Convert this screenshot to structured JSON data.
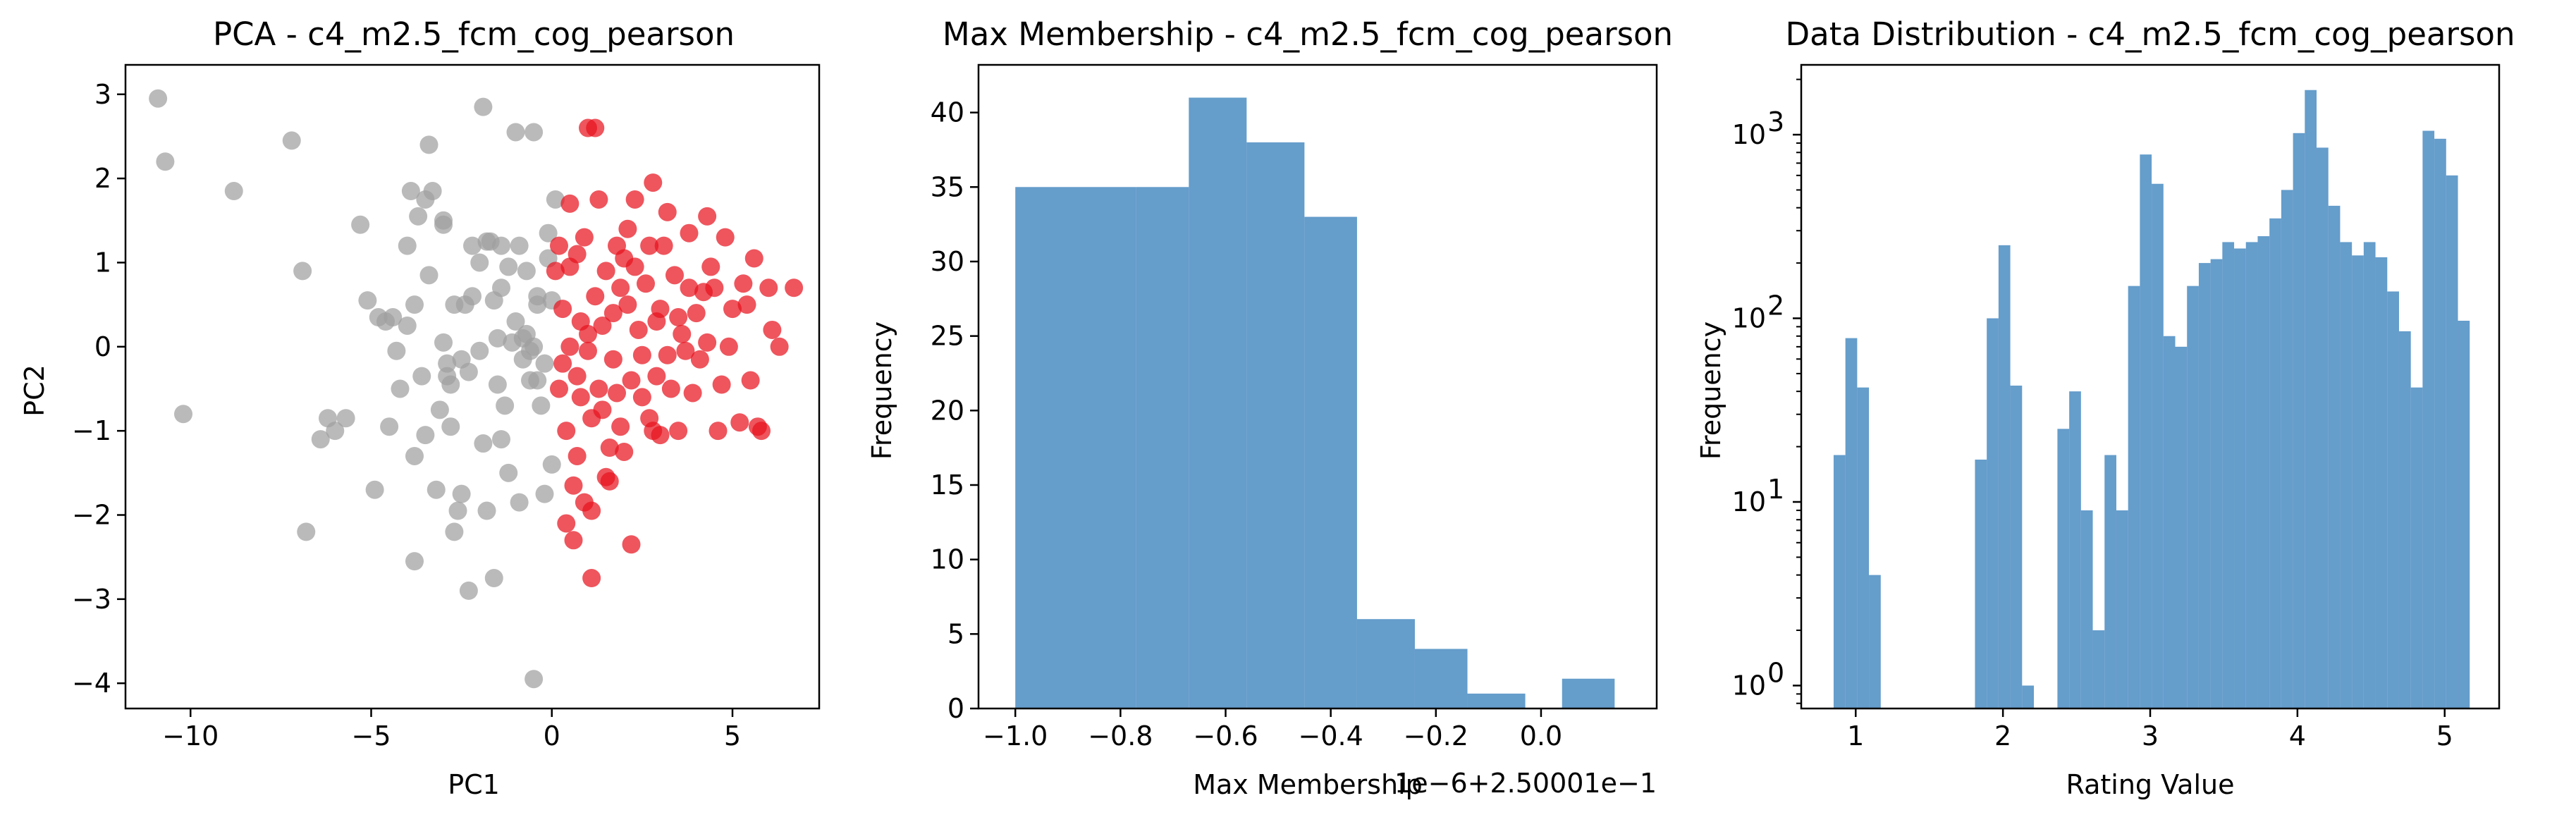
{
  "colors": {
    "gray": "#a0a0a0",
    "red": "#e8141e",
    "blue": "#4a8cc2"
  },
  "chart_data": [
    {
      "type": "scatter",
      "title": "PCA - c4_m2.5_fcm_cog_pearson",
      "xlabel": "PC1",
      "ylabel": "PC2",
      "xlim": [
        -11.8,
        7.4
      ],
      "ylim": [
        -4.3,
        3.35
      ],
      "xticks": [
        {
          "v": -10,
          "t": "−10"
        },
        {
          "v": -5,
          "t": "−5"
        },
        {
          "v": 0,
          "t": "0"
        },
        {
          "v": 5,
          "t": "5"
        }
      ],
      "yticks": [
        {
          "v": -4,
          "t": "−4"
        },
        {
          "v": -3,
          "t": "−3"
        },
        {
          "v": -2,
          "t": "−2"
        },
        {
          "v": -1,
          "t": "−1"
        },
        {
          "v": 0,
          "t": "0"
        },
        {
          "v": 1,
          "t": "1"
        },
        {
          "v": 2,
          "t": "2"
        },
        {
          "v": 3,
          "t": "3"
        }
      ],
      "series": [
        {
          "color": "#a0a0a0",
          "points": [
            [
              -10.9,
              2.95
            ],
            [
              -10.7,
              2.2
            ],
            [
              -10.2,
              -0.8
            ],
            [
              -8.8,
              1.85
            ],
            [
              -7.2,
              2.45
            ],
            [
              -6.9,
              0.9
            ],
            [
              -6.8,
              -2.2
            ],
            [
              -6.4,
              -1.1
            ],
            [
              -6.2,
              -0.85
            ],
            [
              -6.0,
              -1.0
            ],
            [
              -5.7,
              -0.85
            ],
            [
              -5.3,
              1.45
            ],
            [
              -5.1,
              0.55
            ],
            [
              -4.9,
              -1.7
            ],
            [
              -4.8,
              0.35
            ],
            [
              -4.6,
              0.3
            ],
            [
              -4.5,
              -0.95
            ],
            [
              -4.4,
              0.35
            ],
            [
              -4.3,
              -0.05
            ],
            [
              -4.2,
              -0.5
            ],
            [
              -4.0,
              0.25
            ],
            [
              -4.0,
              1.2
            ],
            [
              -3.9,
              1.85
            ],
            [
              -3.8,
              0.5
            ],
            [
              -3.8,
              -1.3
            ],
            [
              -3.8,
              -2.55
            ],
            [
              -3.7,
              1.55
            ],
            [
              -3.6,
              -0.35
            ],
            [
              -3.5,
              -1.05
            ],
            [
              -3.5,
              1.75
            ],
            [
              -3.4,
              0.85
            ],
            [
              -3.4,
              2.4
            ],
            [
              -3.3,
              1.85
            ],
            [
              -3.2,
              -1.7
            ],
            [
              -3.1,
              -0.75
            ],
            [
              -3.0,
              1.45
            ],
            [
              -3.0,
              1.5
            ],
            [
              -3.0,
              0.05
            ],
            [
              -2.9,
              -0.2
            ],
            [
              -2.9,
              -0.35
            ],
            [
              -2.8,
              -0.45
            ],
            [
              -2.8,
              -0.95
            ],
            [
              -2.7,
              0.5
            ],
            [
              -2.7,
              -2.2
            ],
            [
              -2.6,
              -1.95
            ],
            [
              -2.5,
              -0.15
            ],
            [
              -2.5,
              -1.75
            ],
            [
              -2.4,
              0.5
            ],
            [
              -2.3,
              -0.3
            ],
            [
              -2.3,
              -2.9
            ],
            [
              -2.2,
              0.6
            ],
            [
              -2.2,
              1.2
            ],
            [
              -2.0,
              -0.05
            ],
            [
              -2.0,
              1.0
            ],
            [
              -1.9,
              -1.15
            ],
            [
              -1.9,
              2.85
            ],
            [
              -1.8,
              1.25
            ],
            [
              -1.8,
              -1.95
            ],
            [
              -1.7,
              1.25
            ],
            [
              -1.6,
              0.55
            ],
            [
              -1.6,
              -2.75
            ],
            [
              -1.5,
              0.1
            ],
            [
              -1.5,
              -0.45
            ],
            [
              -1.4,
              0.7
            ],
            [
              -1.4,
              1.2
            ],
            [
              -1.4,
              -1.1
            ],
            [
              -1.3,
              -0.7
            ],
            [
              -1.2,
              0.95
            ],
            [
              -1.2,
              -1.5
            ],
            [
              -1.1,
              0.05
            ],
            [
              -1.0,
              0.3
            ],
            [
              -1.0,
              2.55
            ],
            [
              -0.9,
              1.2
            ],
            [
              -0.9,
              -1.85
            ],
            [
              -0.8,
              -0.15
            ],
            [
              -0.8,
              0.1
            ],
            [
              -0.7,
              0.15
            ],
            [
              -0.7,
              0.9
            ],
            [
              -0.6,
              -0.05
            ],
            [
              -0.6,
              -0.4
            ],
            [
              -0.5,
              0.0
            ],
            [
              -0.5,
              2.55
            ],
            [
              -0.5,
              -3.95
            ],
            [
              -0.4,
              0.5
            ],
            [
              -0.4,
              0.6
            ],
            [
              -0.4,
              -0.4
            ],
            [
              -0.3,
              -0.7
            ],
            [
              -0.2,
              -0.2
            ],
            [
              -0.2,
              -1.75
            ],
            [
              -0.1,
              1.35
            ],
            [
              -0.1,
              1.05
            ],
            [
              0.0,
              0.55
            ],
            [
              0.0,
              -1.4
            ],
            [
              0.1,
              1.75
            ]
          ]
        },
        {
          "color": "#e8141e",
          "points": [
            [
              0.1,
              0.9
            ],
            [
              0.2,
              -0.5
            ],
            [
              0.2,
              1.2
            ],
            [
              0.3,
              -0.2
            ],
            [
              0.3,
              0.45
            ],
            [
              0.4,
              -1.0
            ],
            [
              0.4,
              -2.1
            ],
            [
              0.5,
              0.0
            ],
            [
              0.5,
              0.95
            ],
            [
              0.5,
              1.7
            ],
            [
              0.6,
              -1.65
            ],
            [
              0.6,
              -2.3
            ],
            [
              0.7,
              -0.35
            ],
            [
              0.7,
              1.1
            ],
            [
              0.7,
              -1.3
            ],
            [
              0.8,
              0.3
            ],
            [
              0.8,
              -0.6
            ],
            [
              0.9,
              1.3
            ],
            [
              0.9,
              -1.85
            ],
            [
              1.0,
              0.15
            ],
            [
              1.0,
              2.6
            ],
            [
              1.0,
              -0.05
            ],
            [
              1.1,
              -0.85
            ],
            [
              1.1,
              -1.95
            ],
            [
              1.1,
              -2.75
            ],
            [
              1.2,
              2.6
            ],
            [
              1.2,
              0.6
            ],
            [
              1.3,
              -0.5
            ],
            [
              1.3,
              1.75
            ],
            [
              1.4,
              -0.75
            ],
            [
              1.4,
              0.25
            ],
            [
              1.5,
              -1.55
            ],
            [
              1.5,
              0.9
            ],
            [
              1.6,
              -1.2
            ],
            [
              1.6,
              -1.6
            ],
            [
              1.7,
              0.4
            ],
            [
              1.7,
              -0.15
            ],
            [
              1.8,
              1.2
            ],
            [
              1.8,
              -0.55
            ],
            [
              1.9,
              -0.95
            ],
            [
              1.9,
              0.7
            ],
            [
              2.0,
              1.05
            ],
            [
              2.0,
              -1.25
            ],
            [
              2.1,
              1.4
            ],
            [
              2.1,
              0.5
            ],
            [
              2.2,
              -0.4
            ],
            [
              2.2,
              -2.35
            ],
            [
              2.3,
              0.95
            ],
            [
              2.3,
              1.75
            ],
            [
              2.4,
              0.2
            ],
            [
              2.5,
              -0.1
            ],
            [
              2.5,
              -0.6
            ],
            [
              2.6,
              0.75
            ],
            [
              2.7,
              -0.85
            ],
            [
              2.7,
              1.2
            ],
            [
              2.8,
              1.95
            ],
            [
              2.8,
              -1.0
            ],
            [
              2.9,
              0.3
            ],
            [
              2.9,
              -0.35
            ],
            [
              3.0,
              0.45
            ],
            [
              3.0,
              -1.05
            ],
            [
              3.1,
              1.2
            ],
            [
              3.2,
              1.6
            ],
            [
              3.2,
              -0.1
            ],
            [
              3.3,
              -0.5
            ],
            [
              3.4,
              0.85
            ],
            [
              3.5,
              -1.0
            ],
            [
              3.5,
              0.35
            ],
            [
              3.6,
              0.15
            ],
            [
              3.7,
              -0.05
            ],
            [
              3.8,
              0.7
            ],
            [
              3.8,
              1.35
            ],
            [
              3.9,
              -0.55
            ],
            [
              4.0,
              0.4
            ],
            [
              4.1,
              -0.15
            ],
            [
              4.2,
              0.65
            ],
            [
              4.3,
              1.55
            ],
            [
              4.3,
              0.05
            ],
            [
              4.4,
              0.95
            ],
            [
              4.5,
              0.7
            ],
            [
              4.6,
              -1.0
            ],
            [
              4.7,
              -0.45
            ],
            [
              4.8,
              1.3
            ],
            [
              4.9,
              0.0
            ],
            [
              5.0,
              0.45
            ],
            [
              5.2,
              -0.9
            ],
            [
              5.3,
              0.75
            ],
            [
              5.4,
              0.5
            ],
            [
              5.5,
              -0.4
            ],
            [
              5.6,
              1.05
            ],
            [
              5.7,
              -0.95
            ],
            [
              5.8,
              -1.0
            ],
            [
              6.0,
              0.7
            ],
            [
              6.1,
              0.2
            ],
            [
              6.3,
              0.0
            ],
            [
              6.7,
              0.7
            ]
          ]
        }
      ]
    },
    {
      "type": "bar",
      "title": "Max Membership - c4_m2.5_fcm_cog_pearson",
      "xlabel": "Max Membership",
      "ylabel": "Frequency",
      "offset_text": "1e−6+2.50001e−1",
      "xlim": [
        -1.07,
        0.22
      ],
      "ylim": [
        0,
        43.2
      ],
      "xticks": [
        {
          "v": -1.0,
          "t": "−1.0"
        },
        {
          "v": -0.8,
          "t": "−0.8"
        },
        {
          "v": -0.6,
          "t": "−0.6"
        },
        {
          "v": -0.4,
          "t": "−0.4"
        },
        {
          "v": -0.2,
          "t": "−0.2"
        },
        {
          "v": 0.0,
          "t": "0.0"
        }
      ],
      "yticks": [
        {
          "v": 0,
          "t": "0"
        },
        {
          "v": 5,
          "t": "5"
        },
        {
          "v": 10,
          "t": "10"
        },
        {
          "v": 15,
          "t": "15"
        },
        {
          "v": 20,
          "t": "20"
        },
        {
          "v": 25,
          "t": "25"
        },
        {
          "v": 30,
          "t": "30"
        },
        {
          "v": 35,
          "t": "35"
        },
        {
          "v": 40,
          "t": "40"
        }
      ],
      "bars": [
        [
          -1.0,
          -0.77,
          35
        ],
        [
          -0.77,
          -0.67,
          35
        ],
        [
          -0.67,
          -0.56,
          41
        ],
        [
          -0.56,
          -0.45,
          38
        ],
        [
          -0.45,
          -0.35,
          33
        ],
        [
          -0.35,
          -0.24,
          6
        ],
        [
          -0.24,
          -0.14,
          4
        ],
        [
          -0.14,
          -0.03,
          1
        ],
        [
          0.04,
          0.14,
          2
        ]
      ]
    },
    {
      "type": "bar",
      "title": "Data Distribution - c4_m2.5_fcm_cog_pearson",
      "xlabel": "Rating Value",
      "ylabel": "Frequency",
      "yscale": "log",
      "xlim": [
        0.63,
        5.37
      ],
      "ylim": [
        0.75,
        2400
      ],
      "xticks": [
        {
          "v": 1,
          "t": "1"
        },
        {
          "v": 2,
          "t": "2"
        },
        {
          "v": 3,
          "t": "3"
        },
        {
          "v": 4,
          "t": "4"
        },
        {
          "v": 5,
          "t": "5"
        }
      ],
      "yticks": [
        {
          "v": 1,
          "b": "10",
          "e": "0"
        },
        {
          "v": 10,
          "b": "10",
          "e": "1"
        },
        {
          "v": 100,
          "b": "10",
          "e": "2"
        },
        {
          "v": 1000,
          "b": "10",
          "e": "3"
        }
      ],
      "bars": [
        [
          0.85,
          0.93,
          18
        ],
        [
          0.93,
          1.01,
          78
        ],
        [
          1.01,
          1.09,
          42
        ],
        [
          1.09,
          1.17,
          4
        ],
        [
          1.81,
          1.89,
          17
        ],
        [
          1.89,
          1.97,
          100
        ],
        [
          1.97,
          2.05,
          250
        ],
        [
          2.05,
          2.13,
          43
        ],
        [
          2.13,
          2.21,
          1
        ],
        [
          2.37,
          2.45,
          25
        ],
        [
          2.45,
          2.53,
          40
        ],
        [
          2.53,
          2.61,
          9
        ],
        [
          2.61,
          2.69,
          2
        ],
        [
          2.69,
          2.77,
          18
        ],
        [
          2.77,
          2.85,
          9
        ],
        [
          2.85,
          2.93,
          150
        ],
        [
          2.93,
          3.01,
          780
        ],
        [
          3.01,
          3.09,
          540
        ],
        [
          3.09,
          3.17,
          80
        ],
        [
          3.17,
          3.25,
          70
        ],
        [
          3.25,
          3.33,
          150
        ],
        [
          3.33,
          3.41,
          200
        ],
        [
          3.41,
          3.49,
          210
        ],
        [
          3.49,
          3.57,
          260
        ],
        [
          3.57,
          3.65,
          240
        ],
        [
          3.65,
          3.73,
          260
        ],
        [
          3.73,
          3.81,
          280
        ],
        [
          3.81,
          3.89,
          350
        ],
        [
          3.89,
          3.97,
          500
        ],
        [
          3.97,
          4.05,
          1020
        ],
        [
          4.05,
          4.13,
          1750
        ],
        [
          4.13,
          4.21,
          850
        ],
        [
          4.21,
          4.29,
          410
        ],
        [
          4.29,
          4.37,
          260
        ],
        [
          4.37,
          4.45,
          220
        ],
        [
          4.45,
          4.53,
          260
        ],
        [
          4.53,
          4.61,
          215
        ],
        [
          4.61,
          4.69,
          140
        ],
        [
          4.69,
          4.77,
          85
        ],
        [
          4.77,
          4.85,
          42
        ],
        [
          4.85,
          4.93,
          1050
        ],
        [
          4.93,
          5.01,
          950
        ],
        [
          5.01,
          5.09,
          600
        ],
        [
          5.09,
          5.17,
          97
        ]
      ]
    }
  ]
}
